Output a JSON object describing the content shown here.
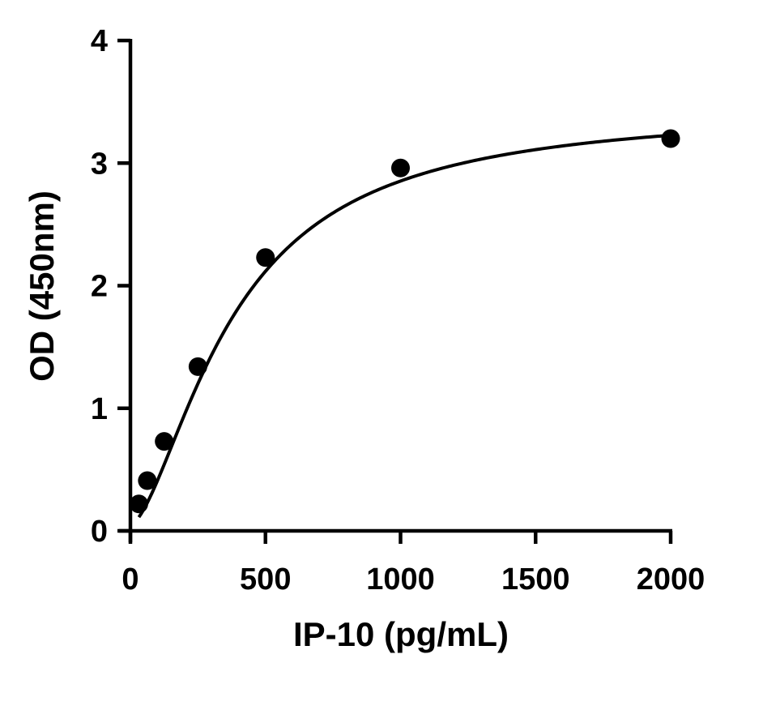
{
  "chart_data": {
    "type": "scatter",
    "title": "",
    "xlabel": "IP-10 (pg/mL)",
    "ylabel": "OD (450nm)",
    "xlim": [
      0,
      2000
    ],
    "ylim": [
      0,
      4
    ],
    "x_ticks": [
      0,
      500,
      1000,
      1500,
      2000
    ],
    "x_tick_labels": [
      "0",
      "500",
      "1000",
      "1500",
      "2000"
    ],
    "y_ticks": [
      0,
      1,
      2,
      3,
      4
    ],
    "y_tick_labels": [
      "0",
      "1",
      "2",
      "3",
      "4"
    ],
    "grid": false,
    "legend": "none",
    "series": [
      {
        "kind": "points",
        "marker": "filled-circle",
        "color": "#000000",
        "x": [
          31.25,
          62.5,
          125,
          250,
          500,
          1000,
          2000
        ],
        "y": [
          0.22,
          0.41,
          0.73,
          1.34,
          2.23,
          2.96,
          3.2
        ]
      }
    ],
    "fit_curve": {
      "kind": "four-parameter-logistic",
      "color": "#000000",
      "params": {
        "bottom": 0.05,
        "top": 3.45,
        "ec50": 380,
        "hill": 1.6
      }
    }
  }
}
